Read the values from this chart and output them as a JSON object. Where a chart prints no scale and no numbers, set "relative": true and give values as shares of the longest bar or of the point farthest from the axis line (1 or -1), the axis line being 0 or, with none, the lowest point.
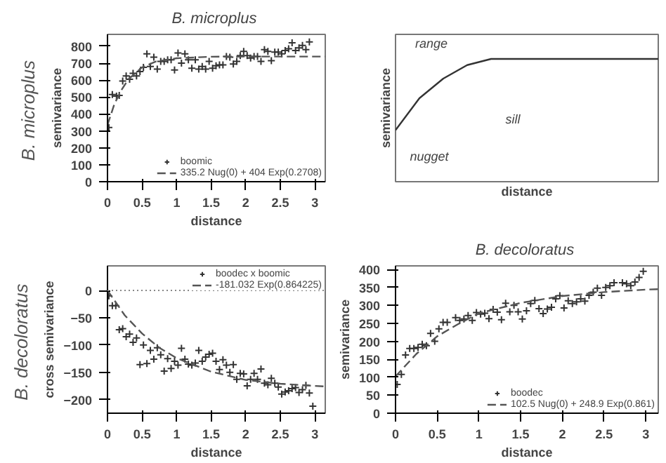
{
  "chart_data": [
    {
      "type": "scatter",
      "title": "B.  microplus",
      "xlabel": "distance",
      "ylabel": "semivariance",
      "annotations": [
        "B.  microplus"
      ],
      "xlim": [
        0,
        3.15
      ],
      "ylim": [
        0,
        870
      ],
      "xticks": [
        0,
        0.5,
        1,
        1.5,
        2,
        2.5,
        3
      ],
      "yticks": [
        0,
        100,
        200,
        300,
        400,
        500,
        600,
        700,
        800
      ],
      "legend": "bottom right",
      "series": [
        {
          "name": "boomic",
          "type": "scatter",
          "marker": "cross",
          "color": "#333333",
          "x": [
            0.02,
            0.07,
            0.13,
            0.17,
            0.22,
            0.27,
            0.32,
            0.37,
            0.42,
            0.47,
            0.52,
            0.57,
            0.62,
            0.67,
            0.72,
            0.77,
            0.82,
            0.87,
            0.92,
            0.97,
            1.02,
            1.07,
            1.12,
            1.17,
            1.22,
            1.27,
            1.32,
            1.37,
            1.42,
            1.47,
            1.52,
            1.57,
            1.62,
            1.67,
            1.72,
            1.77,
            1.82,
            1.87,
            1.92,
            1.97,
            2.02,
            2.07,
            2.12,
            2.17,
            2.22,
            2.27,
            2.32,
            2.37,
            2.42,
            2.47,
            2.52,
            2.57,
            2.62,
            2.67,
            2.72,
            2.77,
            2.82,
            2.87,
            2.92
          ],
          "values": [
            320,
            515,
            505,
            510,
            595,
            625,
            605,
            640,
            625,
            650,
            675,
            755,
            680,
            735,
            665,
            710,
            710,
            720,
            720,
            660,
            760,
            700,
            755,
            720,
            670,
            720,
            665,
            680,
            665,
            710,
            670,
            685,
            690,
            690,
            740,
            735,
            695,
            710,
            745,
            770,
            745,
            730,
            740,
            740,
            710,
            780,
            770,
            715,
            765,
            765,
            755,
            775,
            785,
            820,
            775,
            790,
            805,
            780,
            825
          ]
        },
        {
          "name": "335.2 Nug(0) + 404 Exp(0.2708)",
          "type": "line",
          "line_style": "dashed",
          "color": "#555555",
          "x": [
            0,
            0.1,
            0.2,
            0.3,
            0.4,
            0.5,
            0.7,
            1,
            1.5,
            2,
            2.5,
            3,
            3.15
          ],
          "values": [
            335,
            459,
            540,
            604,
            640,
            675,
            710,
            729,
            738,
            739,
            739,
            739,
            739
          ]
        }
      ]
    },
    {
      "type": "line",
      "relative": true,
      "xlabel": "distance",
      "ylabel": "semivariance",
      "annotations": [
        "range",
        "nugget",
        "sill"
      ],
      "categories": [
        null,
        null,
        null,
        null,
        null,
        null,
        null,
        null,
        null,
        null,
        null,
        null
      ],
      "series": [
        {
          "color": "#333333",
          "values": [
            0.42,
            0.68,
            0.84,
            0.95,
            1,
            1,
            1,
            1,
            1,
            1,
            1,
            1
          ]
        }
      ]
    },
    {
      "type": "scatter",
      "xlabel": "distance",
      "ylabel": "cross semivariance",
      "annotations": [
        "B.  decoloratus"
      ],
      "xlim": [
        0,
        3.15
      ],
      "ylim": [
        -225,
        45
      ],
      "xticks": [
        0,
        0.5,
        1,
        1.5,
        2,
        2.5,
        3
      ],
      "yticks": [
        -200,
        -150,
        -100,
        -50,
        0
      ],
      "legend": "top right",
      "ref_lines": [
        {
          "axis": "y",
          "value": 0,
          "color": "#888888",
          "line_style": "dotted"
        }
      ],
      "series": [
        {
          "name": "boodec x boomic",
          "type": "scatter",
          "marker": "cross",
          "color": "#333333",
          "x": [
            0.02,
            0.07,
            0.12,
            0.17,
            0.22,
            0.27,
            0.32,
            0.37,
            0.42,
            0.47,
            0.52,
            0.57,
            0.62,
            0.67,
            0.72,
            0.77,
            0.82,
            0.87,
            0.92,
            0.97,
            1.02,
            1.07,
            1.12,
            1.17,
            1.22,
            1.27,
            1.32,
            1.37,
            1.42,
            1.47,
            1.52,
            1.57,
            1.62,
            1.67,
            1.72,
            1.77,
            1.82,
            1.87,
            1.92,
            1.97,
            2.02,
            2.07,
            2.12,
            2.17,
            2.22,
            2.27,
            2.32,
            2.37,
            2.42,
            2.47,
            2.52,
            2.57,
            2.62,
            2.67,
            2.72,
            2.77,
            2.82,
            2.87,
            2.92,
            2.97
          ],
          "values": [
            -10,
            -28,
            -28,
            -72,
            -70,
            -85,
            -80,
            -95,
            -87,
            -136,
            -100,
            -134,
            -110,
            -126,
            -105,
            -118,
            -148,
            -125,
            -143,
            -130,
            -137,
            -106,
            -126,
            -135,
            -137,
            -133,
            -110,
            -130,
            -122,
            -117,
            -115,
            -130,
            -145,
            -127,
            -137,
            -150,
            -136,
            -163,
            -152,
            -153,
            -175,
            -163,
            -152,
            -163,
            -144,
            -170,
            -173,
            -161,
            -170,
            -177,
            -190,
            -186,
            -184,
            -180,
            -178,
            -187,
            -182,
            -174,
            -188,
            -212
          ]
        },
        {
          "name": "-181.032 Exp(0.864225)",
          "type": "line",
          "line_style": "dashed",
          "color": "#555555",
          "x": [
            0,
            0.25,
            0.5,
            0.75,
            1,
            1.5,
            2,
            2.5,
            3,
            3.15
          ],
          "values": [
            0,
            -45.6,
            -79,
            -105,
            -124,
            -149,
            -164,
            -171,
            -175,
            -176
          ]
        }
      ]
    },
    {
      "type": "scatter",
      "title": "B.  decoloratus",
      "xlabel": "distance",
      "ylabel": "semivariance",
      "xlim": [
        0,
        3.15
      ],
      "ylim": [
        0,
        410
      ],
      "xticks": [
        0,
        0.5,
        1,
        1.5,
        2,
        2.5,
        3
      ],
      "yticks": [
        0,
        50,
        100,
        150,
        200,
        250,
        300,
        350,
        400
      ],
      "legend": "bottom right",
      "series": [
        {
          "name": "boodec",
          "type": "scatter",
          "marker": "cross",
          "color": "#333333",
          "x": [
            0.02,
            0.07,
            0.12,
            0.17,
            0.22,
            0.27,
            0.32,
            0.37,
            0.42,
            0.47,
            0.52,
            0.57,
            0.62,
            0.72,
            0.77,
            0.82,
            0.87,
            0.92,
            0.97,
            1.02,
            1.07,
            1.12,
            1.17,
            1.22,
            1.27,
            1.32,
            1.37,
            1.42,
            1.47,
            1.52,
            1.57,
            1.62,
            1.67,
            1.72,
            1.77,
            1.82,
            1.87,
            1.92,
            1.97,
            2.02,
            2.07,
            2.12,
            2.17,
            2.22,
            2.27,
            2.32,
            2.37,
            2.42,
            2.47,
            2.52,
            2.57,
            2.62,
            2.72,
            2.77,
            2.82,
            2.87,
            2.92,
            2.97
          ],
          "values": [
            80,
            108,
            162,
            180,
            180,
            183,
            192,
            188,
            222,
            200,
            235,
            253,
            253,
            266,
            258,
            262,
            272,
            258,
            280,
            276,
            278,
            263,
            289,
            281,
            260,
            306,
            282,
            300,
            282,
            262,
            285,
            305,
            314,
            291,
            277,
            290,
            295,
            318,
            327,
            293,
            313,
            305,
            310,
            318,
            312,
            328,
            337,
            348,
            328,
            350,
            355,
            363,
            363,
            360,
            355,
            365,
            378,
            395
          ]
        },
        {
          "name": "102.5 Nug(0) + 248.9 Exp(0.861)",
          "type": "line",
          "line_style": "dashed",
          "color": "#555555",
          "x": [
            0,
            0.25,
            0.5,
            0.75,
            1,
            1.5,
            2,
            2.5,
            3,
            3.15
          ],
          "values": [
            102.5,
            165,
            214,
            248,
            278,
            307,
            326,
            337,
            344,
            345
          ]
        }
      ]
    }
  ]
}
